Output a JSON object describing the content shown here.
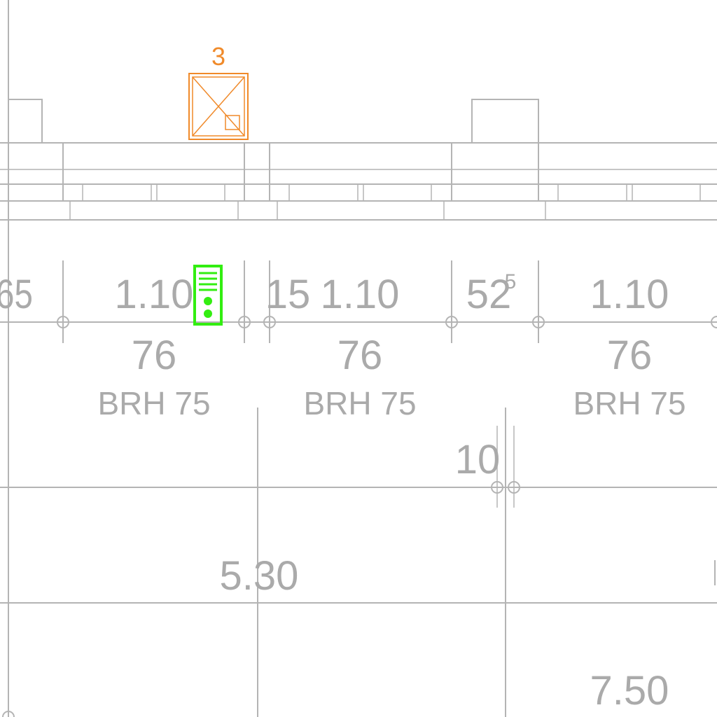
{
  "colors": {
    "lines": "#b4b4b4",
    "text": "#aaaaaa",
    "tag": "#f08a2a",
    "intercom": "#33ee11"
  },
  "tag": {
    "number": "3"
  },
  "dimensions": {
    "d65": "65",
    "d110_a": "1.10",
    "d15": "15",
    "d110_b": "1.10",
    "d52": "52",
    "d52_sup": "5",
    "d110_c": "1.10",
    "d76_a": "76",
    "d76_b": "76",
    "d76_c": "76",
    "d10": "10",
    "d530": "5.30",
    "d750": "7.50"
  },
  "windows": {
    "brh_a": "BRH 75",
    "brh_b": "BRH 75",
    "brh_c": "BRH 75"
  },
  "icons": {
    "electrical_box": "electrical-box-icon",
    "intercom": "intercom-icon"
  }
}
